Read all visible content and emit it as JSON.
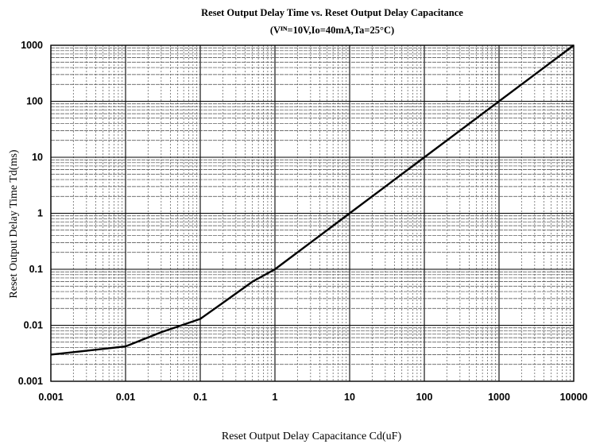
{
  "chart_data": {
    "type": "line",
    "title": "Reset Output Delay Time vs. Reset Output Delay Capacitance",
    "subtitle": "(Vᴵᴺ=10V,Io=40mA,Ta=25°C)",
    "xlabel": "Reset Output Delay Capacitance Cd(uF)",
    "ylabel": "Reset Output Delay Time Td(ms)",
    "x_scale": "log",
    "y_scale": "log",
    "xlim": [
      0.001,
      10000
    ],
    "ylim": [
      0.001,
      1000
    ],
    "x_ticks": [
      "0.001",
      "0.01",
      "0.1",
      "1",
      "10",
      "100",
      "1000",
      "10000"
    ],
    "y_ticks": [
      "0.001",
      "0.01",
      "0.1",
      "1",
      "10",
      "100",
      "1000"
    ],
    "grid": true,
    "series": [
      {
        "x": [
          0.001,
          0.003,
          0.01,
          0.03,
          0.1,
          0.2,
          0.5,
          1,
          3,
          10,
          30,
          100,
          300,
          1000,
          3000,
          10000
        ],
        "y": [
          0.003,
          0.0035,
          0.0042,
          0.0075,
          0.013,
          0.025,
          0.06,
          0.1,
          0.3,
          1,
          3,
          10,
          30,
          100,
          300,
          1000
        ]
      }
    ]
  }
}
